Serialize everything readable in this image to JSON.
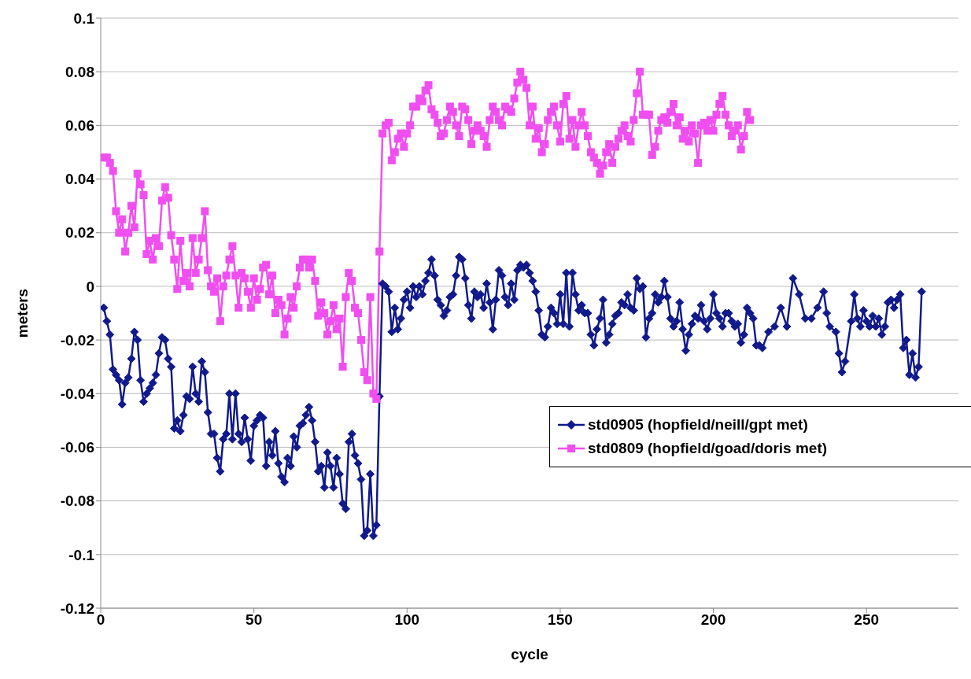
{
  "chart_data": {
    "type": "line",
    "xlabel": "cycle",
    "ylabel": "meters",
    "xlim": [
      0,
      280
    ],
    "xticks": [
      0,
      50,
      100,
      150,
      200,
      250
    ],
    "ylim": [
      -0.12,
      0.1
    ],
    "yticks": [
      -0.12,
      -0.1,
      -0.08,
      -0.06,
      -0.04,
      -0.02,
      0,
      0.02,
      0.04,
      0.06,
      0.08,
      0.1
    ],
    "grid": "y",
    "legend": "right",
    "line_style": "solid",
    "series": [
      {
        "name": "std0905 (hopfield/neill/gpt met)",
        "color": "#101a8c",
        "marker": "diamond",
        "x": [
          1,
          2,
          3,
          4,
          5,
          6,
          7,
          8,
          9,
          10,
          11,
          12,
          13,
          14,
          15,
          16,
          17,
          18,
          19,
          20,
          21,
          22,
          23,
          24,
          25,
          26,
          27,
          28,
          29,
          30,
          31,
          32,
          33,
          34,
          35,
          36,
          37,
          38,
          39,
          40,
          41,
          42,
          43,
          44,
          45,
          46,
          47,
          48,
          49,
          50,
          51,
          52,
          53,
          54,
          55,
          56,
          57,
          58,
          59,
          60,
          61,
          62,
          63,
          64,
          65,
          66,
          67,
          68,
          69,
          70,
          71,
          72,
          73,
          74,
          75,
          76,
          77,
          78,
          79,
          80,
          81,
          82,
          83,
          84,
          85,
          86,
          87,
          88,
          89,
          90,
          91,
          92,
          93,
          94,
          95,
          96,
          97,
          98,
          99,
          100,
          101,
          102,
          103,
          104,
          105,
          106,
          107,
          108,
          109,
          110,
          111,
          112,
          113,
          114,
          115,
          116,
          117,
          118,
          119,
          120,
          121,
          122,
          123,
          124,
          125,
          126,
          127,
          128,
          129,
          130,
          131,
          132,
          133,
          134,
          135,
          136,
          137,
          138,
          139,
          140,
          141,
          142,
          143,
          144,
          145,
          146,
          147,
          148,
          149,
          150,
          151,
          152,
          153,
          154,
          155,
          156,
          157,
          158,
          159,
          160,
          161,
          162,
          163,
          164,
          165,
          166,
          167,
          168,
          169,
          170,
          171,
          172,
          173,
          174,
          175,
          176,
          177,
          178,
          179,
          180,
          181,
          182,
          183,
          184,
          185,
          186,
          187,
          188,
          189,
          190,
          191,
          192,
          193,
          194,
          195,
          196,
          197,
          198,
          199,
          200,
          201,
          202,
          203,
          204,
          205,
          206,
          207,
          208,
          209,
          210,
          211,
          212,
          213,
          214,
          215,
          216,
          218,
          220,
          222,
          224,
          226,
          228,
          230,
          232,
          234,
          236,
          237,
          238,
          240,
          241,
          242,
          243,
          245,
          246,
          247,
          248,
          249,
          250,
          251,
          252,
          253,
          254,
          255,
          256,
          257,
          258,
          259,
          260,
          261,
          262,
          263,
          264,
          265,
          266,
          267,
          268
        ],
        "values": [
          -0.008,
          -0.013,
          -0.018,
          -0.031,
          -0.033,
          -0.035,
          -0.044,
          -0.036,
          -0.034,
          -0.027,
          -0.017,
          -0.02,
          -0.035,
          -0.043,
          -0.04,
          -0.038,
          -0.036,
          -0.033,
          -0.025,
          -0.019,
          -0.02,
          -0.027,
          -0.03,
          -0.053,
          -0.05,
          -0.054,
          -0.048,
          -0.041,
          -0.042,
          -0.03,
          -0.04,
          -0.043,
          -0.028,
          -0.032,
          -0.047,
          -0.055,
          -0.055,
          -0.064,
          -0.069,
          -0.057,
          -0.055,
          -0.04,
          -0.057,
          -0.04,
          -0.055,
          -0.058,
          -0.049,
          -0.057,
          -0.065,
          -0.052,
          -0.05,
          -0.048,
          -0.049,
          -0.067,
          -0.058,
          -0.063,
          -0.054,
          -0.066,
          -0.071,
          -0.073,
          -0.064,
          -0.067,
          -0.056,
          -0.06,
          -0.052,
          -0.051,
          -0.048,
          -0.045,
          -0.05,
          -0.058,
          -0.069,
          -0.067,
          -0.075,
          -0.062,
          -0.067,
          -0.075,
          -0.064,
          -0.07,
          -0.081,
          -0.083,
          -0.058,
          -0.055,
          -0.063,
          -0.066,
          -0.072,
          -0.093,
          -0.091,
          -0.07,
          -0.093,
          -0.089,
          -0.041,
          0.001,
          0,
          -0.002,
          -0.017,
          -0.008,
          -0.016,
          -0.012,
          -0.005,
          -0.002,
          -0.008,
          0,
          -0.004,
          0,
          -0.003,
          0.002,
          0.005,
          0.01,
          0.004,
          -0.005,
          -0.007,
          -0.011,
          -0.009,
          -0.004,
          -0.003,
          0.004,
          0.011,
          0.01,
          0.003,
          -0.007,
          -0.012,
          -0.002,
          -0.004,
          -0.003,
          -0.008,
          0.001,
          -0.006,
          -0.016,
          -0.005,
          0.006,
          0.004,
          -0.004,
          -0.007,
          0.001,
          -0.005,
          0.006,
          0.008,
          0.007,
          0.008,
          0.005,
          0.002,
          -0.002,
          -0.009,
          -0.018,
          -0.019,
          -0.015,
          -0.008,
          -0.01,
          -0.014,
          -0.003,
          -0.014,
          0.005,
          -0.015,
          0.005,
          -0.003,
          -0.009,
          -0.007,
          -0.01,
          -0.01,
          -0.018,
          -0.022,
          -0.016,
          -0.012,
          -0.005,
          -0.021,
          -0.018,
          -0.014,
          -0.011,
          -0.01,
          -0.006,
          -0.007,
          -0.003,
          -0.008,
          -0.009,
          0.003,
          -0.001,
          0,
          -0.019,
          -0.012,
          -0.01,
          -0.003,
          -0.006,
          -0.004,
          0.002,
          -0.004,
          -0.012,
          -0.015,
          -0.013,
          -0.006,
          -0.016,
          -0.024,
          -0.018,
          -0.014,
          -0.011,
          -0.012,
          -0.007,
          -0.013,
          -0.016,
          -0.012,
          -0.003,
          -0.01,
          -0.012,
          -0.015,
          -0.01,
          -0.01,
          -0.013,
          -0.015,
          -0.014,
          -0.021,
          -0.018,
          -0.008,
          -0.01,
          -0.012,
          -0.022,
          -0.022,
          -0.023,
          -0.017,
          -0.015,
          -0.008,
          -0.015,
          0.003,
          -0.003,
          -0.012,
          -0.012,
          -0.008,
          -0.002,
          -0.01,
          -0.015,
          -0.017,
          -0.025,
          -0.032,
          -0.028,
          -0.013,
          -0.003,
          -0.012,
          -0.015,
          -0.009,
          -0.013,
          -0.015,
          -0.011,
          -0.015,
          -0.012,
          -0.018,
          -0.015,
          -0.006,
          -0.005,
          -0.008,
          -0.005,
          -0.003,
          -0.023,
          -0.02,
          -0.033,
          -0.025,
          -0.034,
          -0.03,
          -0.002
        ]
      },
      {
        "name": "std0809 (hopfield/goad/doris met)",
        "color": "#f04ef0",
        "marker": "square",
        "x": [
          1,
          2,
          3,
          4,
          5,
          6,
          7,
          8,
          9,
          10,
          11,
          12,
          13,
          14,
          15,
          16,
          17,
          18,
          19,
          20,
          21,
          22,
          23,
          24,
          25,
          26,
          27,
          28,
          29,
          30,
          31,
          32,
          33,
          34,
          35,
          36,
          37,
          38,
          39,
          40,
          41,
          42,
          43,
          44,
          45,
          46,
          47,
          48,
          49,
          50,
          51,
          52,
          53,
          54,
          55,
          56,
          57,
          58,
          59,
          60,
          61,
          62,
          63,
          64,
          65,
          66,
          67,
          68,
          69,
          70,
          71,
          72,
          73,
          74,
          75,
          76,
          77,
          78,
          79,
          80,
          81,
          82,
          83,
          84,
          85,
          86,
          87,
          88,
          89,
          90,
          91,
          92,
          93,
          94,
          95,
          96,
          97,
          98,
          99,
          100,
          101,
          102,
          103,
          104,
          105,
          106,
          107,
          108,
          109,
          110,
          111,
          112,
          113,
          114,
          115,
          116,
          117,
          118,
          119,
          120,
          121,
          122,
          123,
          124,
          125,
          126,
          127,
          128,
          129,
          130,
          131,
          132,
          133,
          134,
          135,
          136,
          137,
          138,
          139,
          140,
          141,
          142,
          143,
          144,
          145,
          146,
          147,
          148,
          149,
          150,
          151,
          152,
          153,
          154,
          155,
          156,
          157,
          158,
          159,
          160,
          161,
          162,
          163,
          164,
          165,
          166,
          167,
          168,
          169,
          170,
          171,
          172,
          173,
          174,
          175,
          176,
          177,
          178,
          179,
          180,
          181,
          182,
          183,
          184,
          185,
          186,
          187,
          188,
          189,
          190,
          191,
          192,
          193,
          194,
          195,
          196,
          197,
          198,
          199,
          200,
          201,
          202,
          203,
          204,
          205,
          206,
          207,
          208,
          209,
          210,
          211,
          212
        ],
        "values": [
          0.048,
          0.048,
          0.046,
          0.043,
          0.028,
          0.02,
          0.025,
          0.013,
          0.02,
          0.03,
          0.022,
          0.042,
          0.038,
          0.034,
          0.012,
          0.017,
          0.01,
          0.018,
          0.015,
          0.032,
          0.037,
          0.033,
          0.019,
          0.01,
          -0.001,
          0.017,
          0.002,
          0.005,
          0,
          0.018,
          0.005,
          0.01,
          0.018,
          0.028,
          0.006,
          0,
          -0.002,
          0.003,
          -0.013,
          0,
          0.004,
          0.01,
          0.015,
          0.004,
          -0.008,
          0.005,
          0.003,
          -0.002,
          -0.008,
          0.003,
          -0.005,
          -0.001,
          0.007,
          0.008,
          -0.003,
          0.004,
          -0.01,
          -0.005,
          -0.007,
          -0.018,
          -0.012,
          -0.004,
          -0.008,
          0,
          0.007,
          0.01,
          0.01,
          0.007,
          0.01,
          0.002,
          -0.011,
          -0.006,
          -0.01,
          -0.018,
          -0.013,
          -0.007,
          -0.016,
          -0.012,
          -0.03,
          -0.004,
          0.005,
          0.002,
          -0.008,
          -0.01,
          -0.02,
          -0.032,
          -0.035,
          -0.004,
          -0.04,
          -0.042,
          0.013,
          0.057,
          0.06,
          0.061,
          0.047,
          0.05,
          0.055,
          0.057,
          0.052,
          0.057,
          0.06,
          0.067,
          0.067,
          0.07,
          0.069,
          0.073,
          0.075,
          0.066,
          0.064,
          0.061,
          0.056,
          0.057,
          0.062,
          0.067,
          0.065,
          0.06,
          0.056,
          0.067,
          0.066,
          0.062,
          0.053,
          0.058,
          0.06,
          0.058,
          0.056,
          0.052,
          0.062,
          0.067,
          0.065,
          0.062,
          0.06,
          0.067,
          0.066,
          0.065,
          0.07,
          0.076,
          0.08,
          0.077,
          0.074,
          0.06,
          0.067,
          0.055,
          0.059,
          0.05,
          0.053,
          0.062,
          0.065,
          0.067,
          0.06,
          0.054,
          0.068,
          0.071,
          0.055,
          0.062,
          0.052,
          0.06,
          0.065,
          0.06,
          0.056,
          0.05,
          0.048,
          0.046,
          0.042,
          0.045,
          0.05,
          0.053,
          0.046,
          0.052,
          0.055,
          0.058,
          0.06,
          0.056,
          0.054,
          0.062,
          0.072,
          0.08,
          0.064,
          0.064,
          0.064,
          0.049,
          0.052,
          0.058,
          0.062,
          0.063,
          0.061,
          0.065,
          0.068,
          0.06,
          0.063,
          0.055,
          0.058,
          0.054,
          0.06,
          0.057,
          0.046,
          0.06,
          0.061,
          0.058,
          0.062,
          0.058,
          0.064,
          0.068,
          0.071,
          0.064,
          0.06,
          0.056,
          0.058,
          0.06,
          0.051,
          0.056,
          0.065,
          0.062
        ]
      }
    ]
  }
}
